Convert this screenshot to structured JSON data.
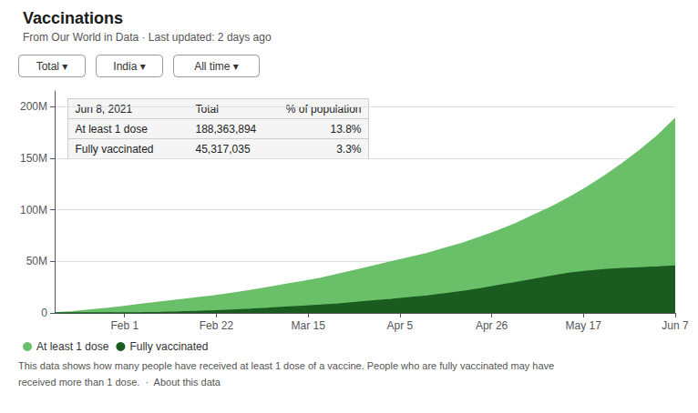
{
  "chart_data": {
    "type": "area",
    "title": "Vaccinations",
    "subtitle": "From Our World in Data · Last updated: 2 days ago",
    "x": [
      0,
      1,
      2,
      3,
      4,
      5,
      6,
      7,
      8,
      9,
      10,
      11,
      12,
      13,
      14,
      15,
      16,
      17,
      18,
      19,
      20,
      21,
      22,
      23,
      24,
      25,
      26,
      27,
      28,
      29,
      30,
      31,
      32,
      33,
      34,
      35
    ],
    "xlim": [
      0,
      35
    ],
    "xticks": [
      {
        "value": 3.943661971830986,
        "label": "Feb 1"
      },
      {
        "value": 9.119718309859156,
        "label": "Feb 22"
      },
      {
        "value": 14.295774647887324,
        "label": "Mar 15"
      },
      {
        "value": 19.471830985915492,
        "label": "Apr 5"
      },
      {
        "value": 24.647887323943664,
        "label": "Apr 26"
      },
      {
        "value": 29.823943661971832,
        "label": "May 17"
      },
      {
        "value": 35,
        "label": "Jun 7"
      }
    ],
    "ylim": [
      0,
      215000000
    ],
    "yticks": [
      0,
      {
        "value": 50000000,
        "label": "50M"
      },
      {
        "value": 100000000,
        "label": "100M"
      },
      {
        "value": 150000000,
        "label": "150M"
      },
      {
        "value": 200000000,
        "label": "200M"
      }
    ],
    "grid": true,
    "legend": "bottom",
    "series": [
      {
        "name": "At least 1 dose",
        "color": "#6abf69",
        "values": [
          0,
          1200000,
          2800000,
          4500000,
          6500000,
          8500000,
          10500000,
          12500000,
          14500000,
          16500000,
          19000000,
          21500000,
          24500000,
          27500000,
          30500000,
          33500000,
          37500000,
          41500000,
          45500000,
          49500000,
          53500000,
          57500000,
          62500000,
          67500000,
          73500000,
          79500000,
          86500000,
          94500000,
          102500000,
          111500000,
          121500000,
          132500000,
          144500000,
          157500000,
          171500000,
          188363894
        ]
      },
      {
        "name": "Fully vaccinated",
        "color": "#1a5c20",
        "values": [
          0,
          0,
          0,
          0,
          80000,
          250000,
          500000,
          900000,
          1400000,
          1900000,
          2700000,
          3500000,
          4400000,
          5400000,
          6400000,
          7400000,
          8700000,
          10100000,
          11600000,
          13100000,
          14700000,
          16400000,
          18400000,
          20700000,
          23400000,
          26400000,
          29400000,
          32400000,
          35400000,
          38400000,
          40400000,
          41900000,
          42900000,
          43700000,
          44400000,
          45317035
        ]
      }
    ],
    "annotations": {
      "buttons": [
        "Total ▾",
        "India ▾",
        "All time ▾"
      ],
      "table": [
        [
          "Jun 8, 2021",
          "Total",
          "% of population"
        ],
        [
          "At least 1 dose",
          "188,363,894",
          "13.8%"
        ],
        [
          "Fully vaccinated",
          "45,317,035",
          "3.3%"
        ]
      ],
      "footer": [
        "This data shows how many people have received at least 1 dose of a vaccine. People who are fully vaccinated may have",
        "received more than 1 dose.  ·  About this data"
      ]
    }
  }
}
